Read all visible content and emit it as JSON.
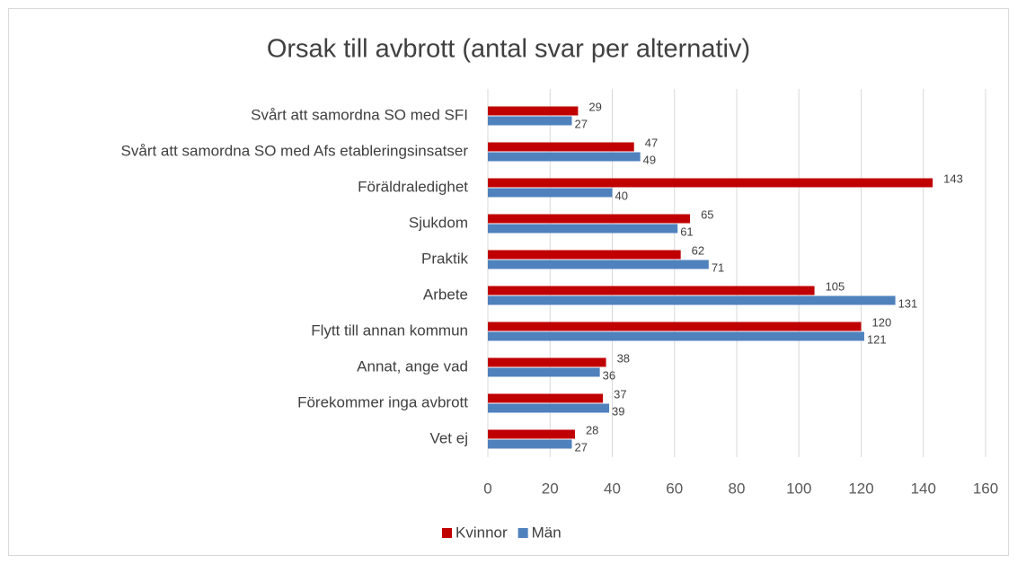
{
  "chart_data": {
    "type": "bar",
    "title": "Orsak till avbrott (antal svar per alternativ)",
    "categories": [
      "Svårt att samordna SO med SFI",
      "Svårt att samordna SO med Afs etableringsinsatser",
      "Föräldraledighet",
      "Sjukdom",
      "Praktik",
      "Arbete",
      "Flytt till annan kommun",
      "Annat, ange vad",
      "Förekommer inga avbrott",
      "Vet ej"
    ],
    "series": [
      {
        "name": "Kvinnor",
        "color": "#c00000",
        "values": [
          29,
          47,
          143,
          65,
          62,
          105,
          120,
          38,
          37,
          28
        ]
      },
      {
        "name": "Män",
        "color": "#4f81bd",
        "values": [
          27,
          49,
          40,
          61,
          71,
          131,
          121,
          36,
          39,
          27
        ]
      }
    ],
    "xlim": [
      0,
      160
    ],
    "xticks": [
      0,
      20,
      40,
      60,
      80,
      100,
      120,
      140,
      160
    ],
    "grid": true
  }
}
